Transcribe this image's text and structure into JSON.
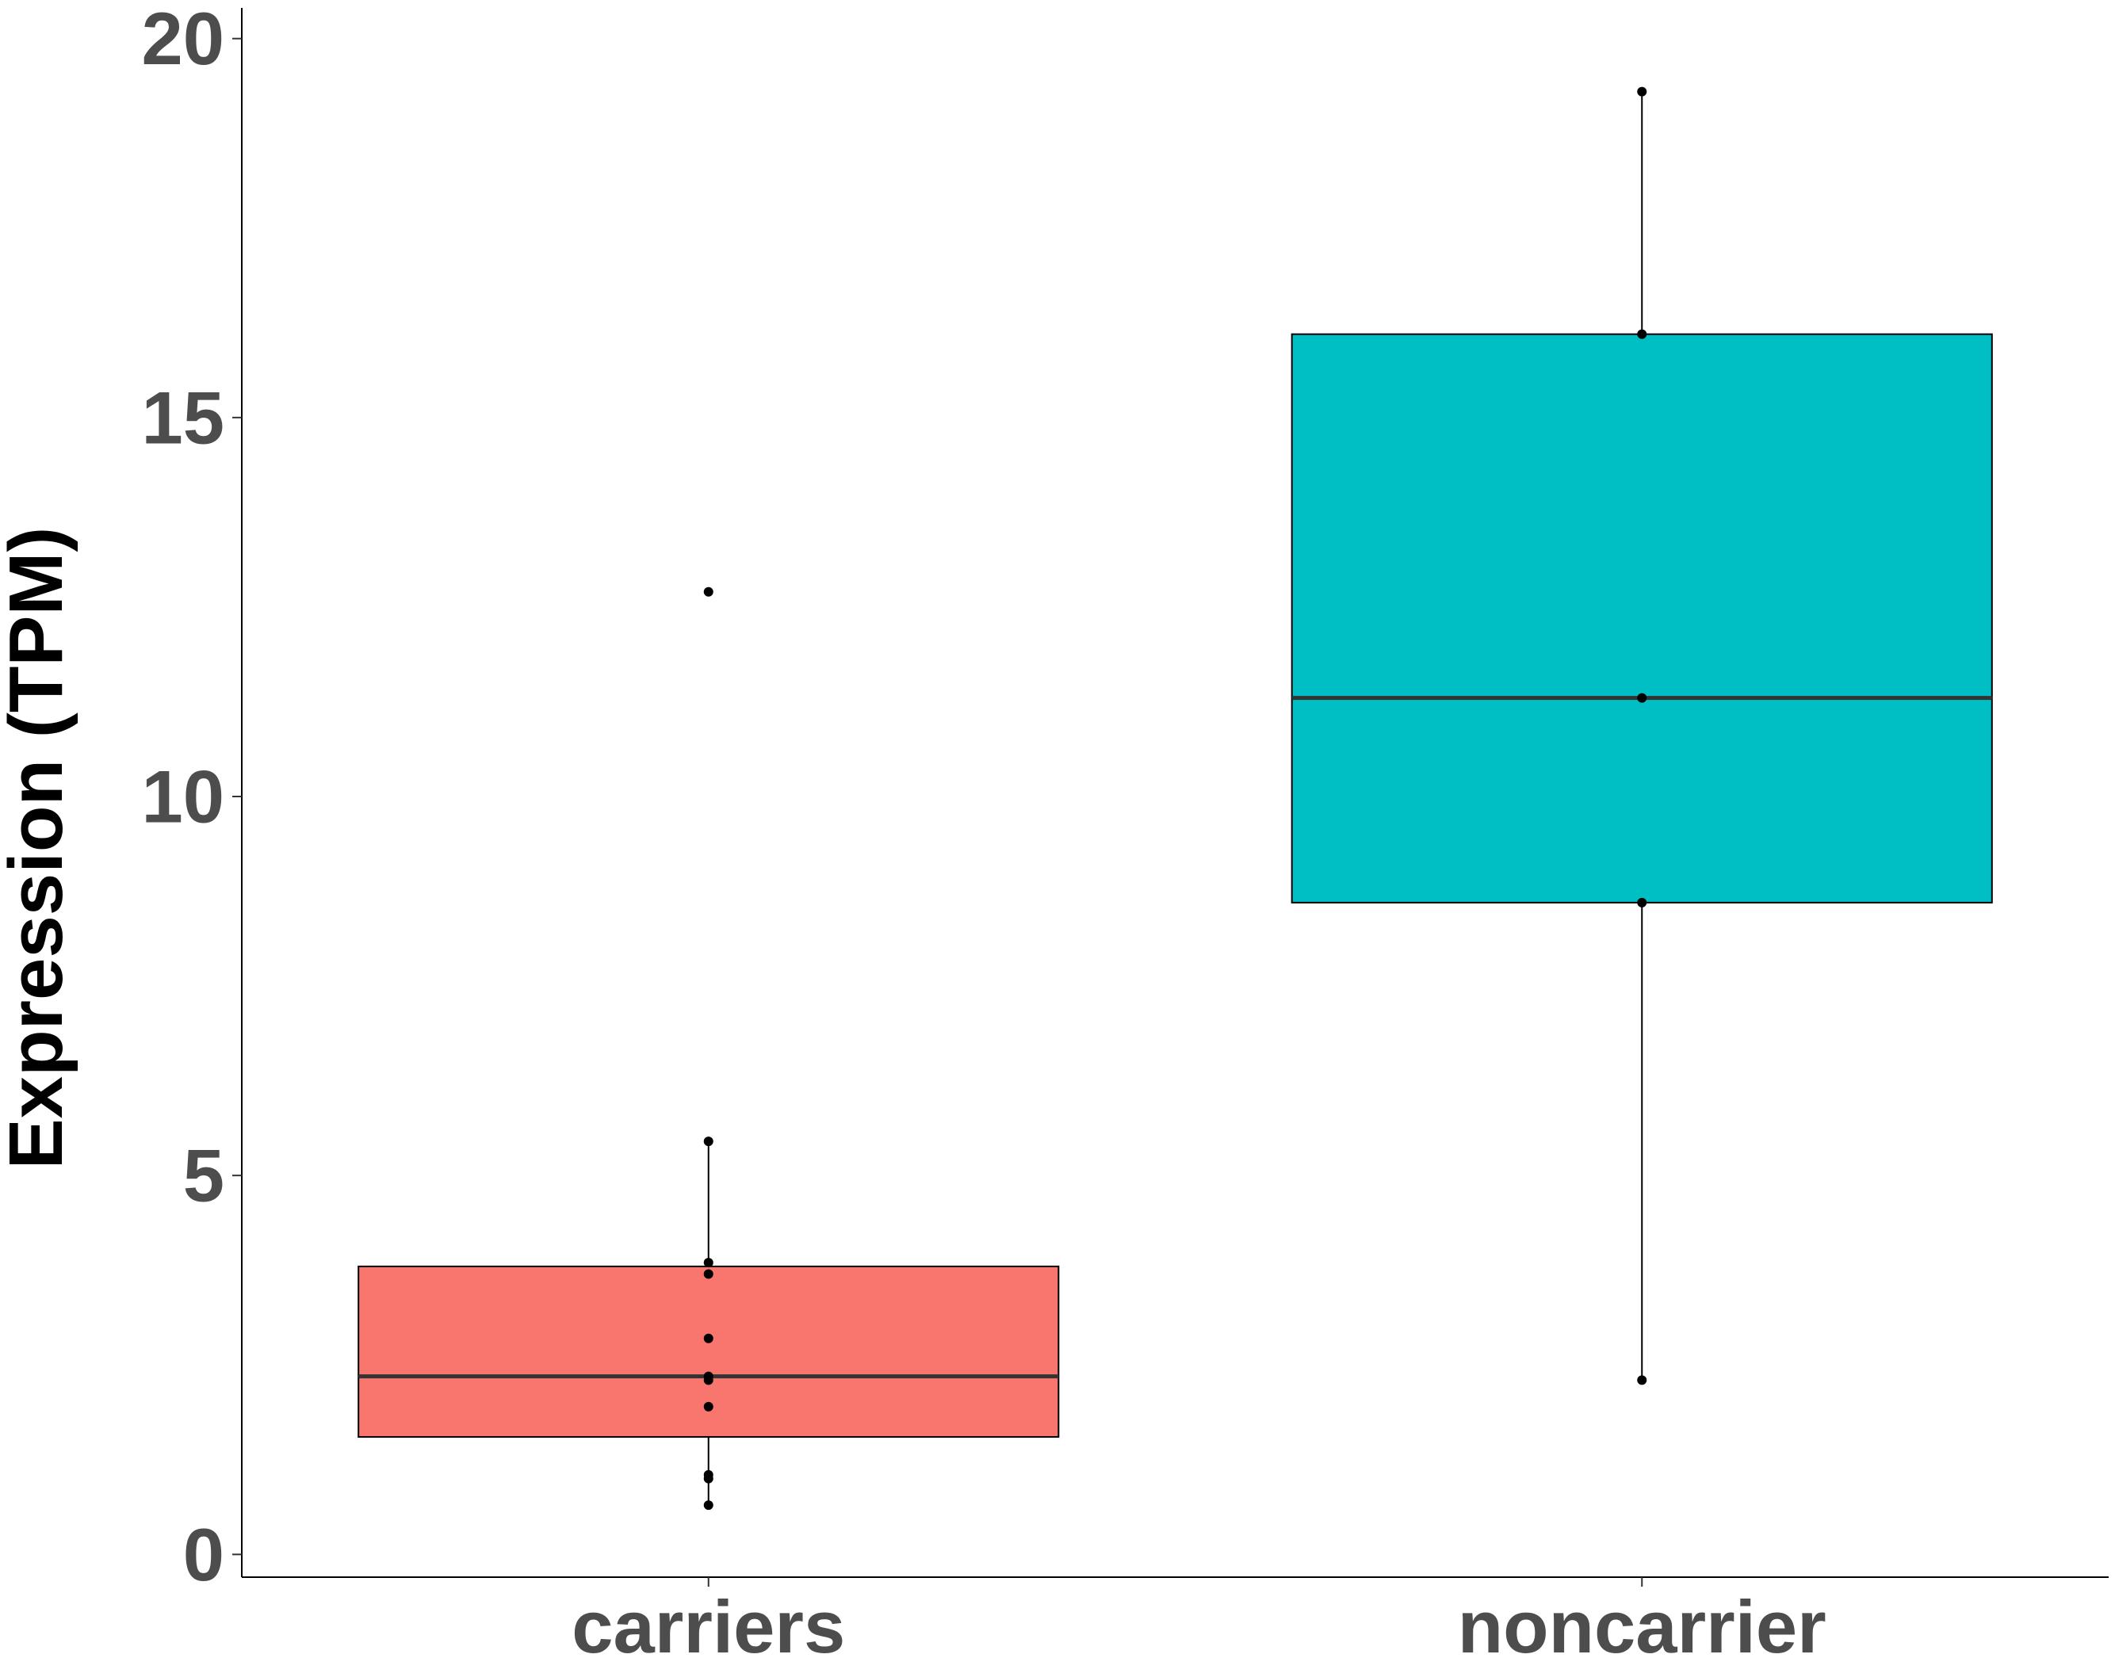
{
  "chart_data": {
    "type": "box",
    "title": "",
    "xlabel": "",
    "ylabel": "Expression (TPM)",
    "ylim": [
      -0.3,
      20.3
    ],
    "yticks": [
      0,
      5,
      10,
      15,
      20
    ],
    "grid": false,
    "legend": "none",
    "categories": [
      "carriers",
      "noncarrier"
    ],
    "boxes": [
      {
        "name": "carriers",
        "color": "#f8766d",
        "whisker_low": 0.65,
        "q1": 1.55,
        "median": 2.35,
        "q3": 3.8,
        "whisker_high": 5.45,
        "points": [
          12.7,
          5.45,
          3.85,
          3.7,
          2.85,
          2.35,
          2.3,
          1.95,
          1.05,
          1.0,
          0.65
        ]
      },
      {
        "name": "noncarrier",
        "color": "#00bfc4",
        "whisker_low": 2.3,
        "q1": 8.6,
        "median": 11.3,
        "q3": 16.1,
        "whisker_high": 19.3,
        "points": [
          19.3,
          16.1,
          11.3,
          8.6,
          2.3
        ]
      }
    ]
  }
}
